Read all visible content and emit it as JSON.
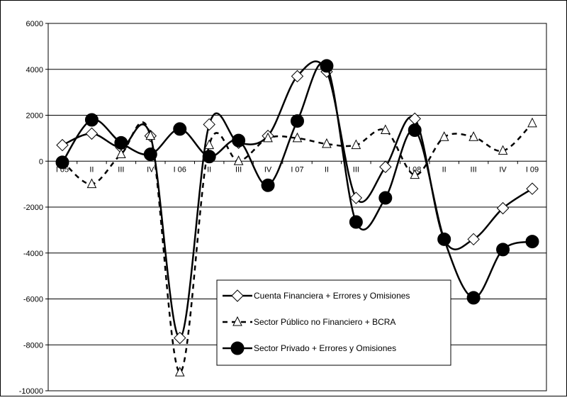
{
  "chart_data": {
    "type": "line",
    "title": "",
    "xlabel": "",
    "ylabel": "",
    "ylim": [
      -10000,
      6000
    ],
    "yticks": [
      -10000,
      -8000,
      -6000,
      -4000,
      -2000,
      0,
      2000,
      4000,
      6000
    ],
    "grid": true,
    "legend_position": "bottom-center",
    "categories": [
      "I 05",
      "II",
      "III",
      "IV",
      "I 06",
      "II",
      "III",
      "IV",
      "I 07",
      "II",
      "III",
      "IV",
      "I 08",
      "II",
      "III",
      "IV",
      "I 09"
    ],
    "series": [
      {
        "name": "Cuenta Financiera + Errores y Omisiones",
        "marker": "diamond",
        "line": "solid",
        "color": "#000000",
        "values": [
          700,
          1200,
          600,
          1100,
          -7700,
          1600,
          800,
          1100,
          3700,
          3900,
          -1600,
          -250,
          1850,
          -3400,
          -3400,
          -2050,
          -1200
        ]
      },
      {
        "name": "Sector Público no Financiero + BCRA",
        "marker": "triangle",
        "line": "dashed",
        "color": "#000000",
        "values": [
          0,
          -1000,
          300,
          1100,
          -9200,
          700,
          0,
          1000,
          1000,
          750,
          700,
          1350,
          -600,
          1050,
          1050,
          450,
          1650
        ]
      },
      {
        "name": "Sector Privado + Errores y Omisiones",
        "marker": "circle",
        "line": "solid",
        "color": "#000000",
        "values": [
          -50,
          1800,
          800,
          300,
          1400,
          200,
          900,
          -1050,
          1750,
          4150,
          -2650,
          -1600,
          1350,
          -3400,
          -5950,
          -3850,
          -3500
        ]
      }
    ]
  }
}
